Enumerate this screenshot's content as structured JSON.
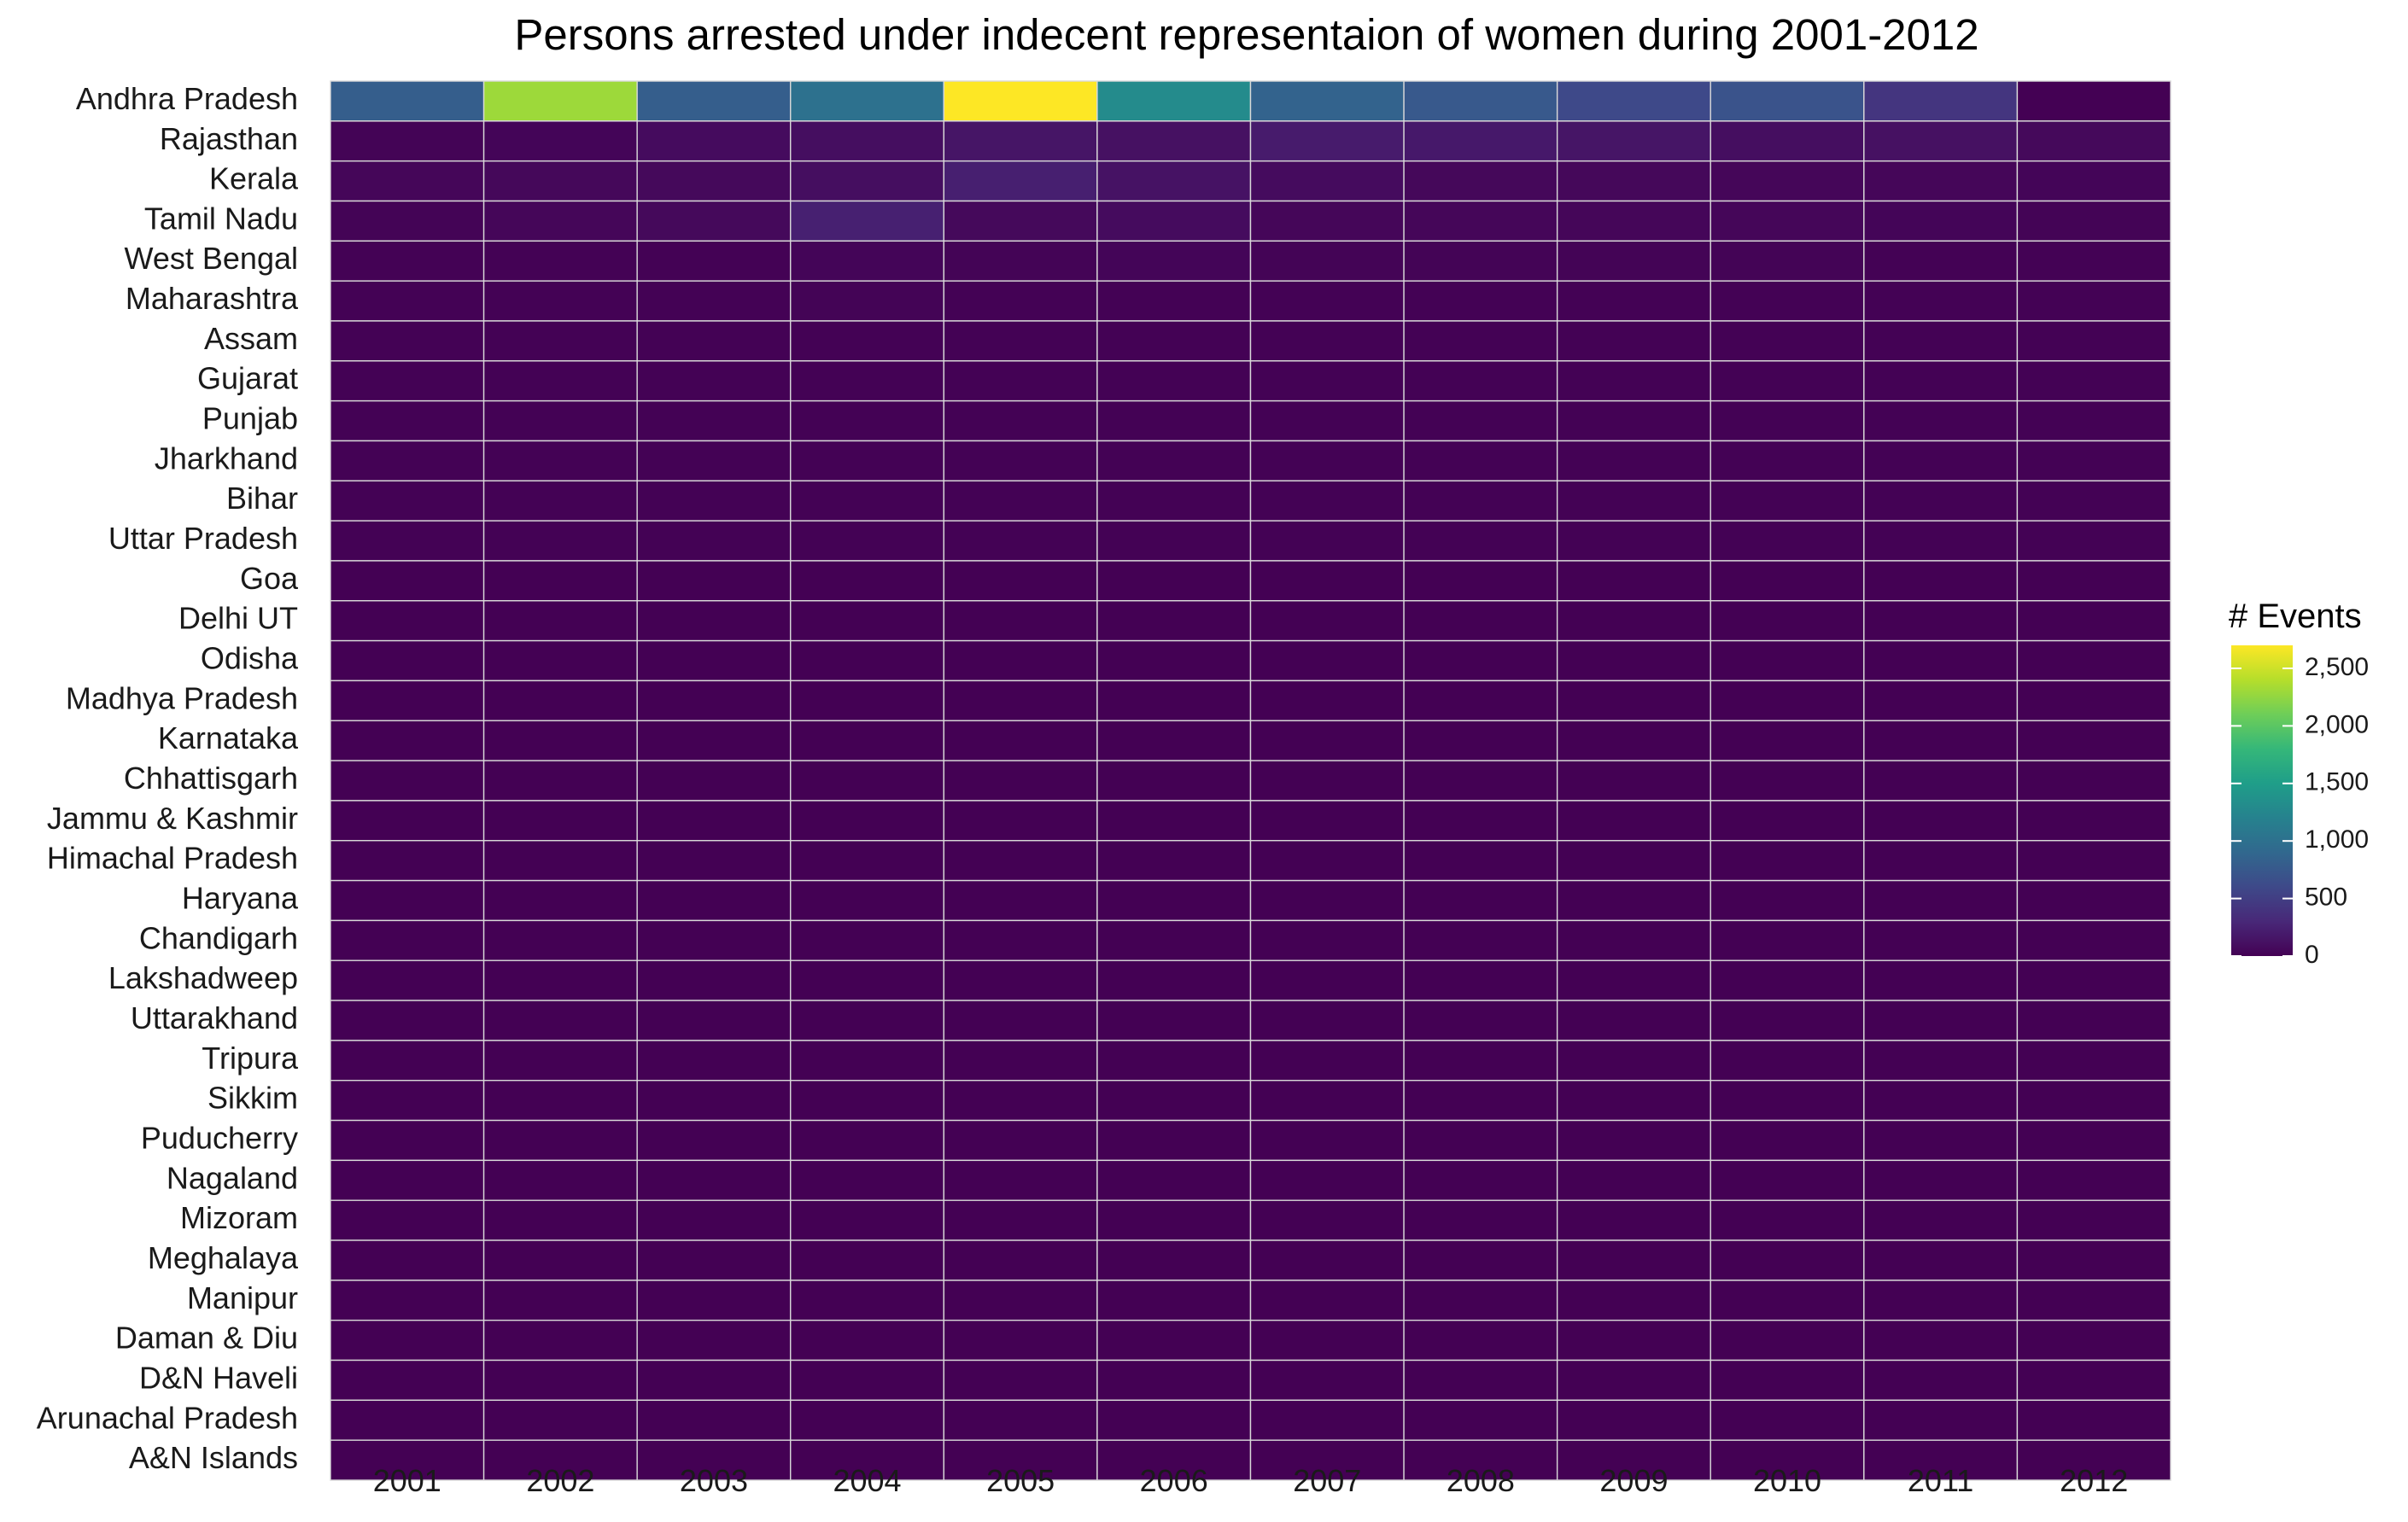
{
  "chart_data": {
    "type": "heatmap",
    "title": "Persons arrested under indecent representaion of women during 2001-2012",
    "xlabel": "",
    "ylabel": "",
    "x_categories": [
      "2001",
      "2002",
      "2003",
      "2004",
      "2005",
      "2006",
      "2007",
      "2008",
      "2009",
      "2010",
      "2011",
      "2012"
    ],
    "y_categories": [
      "Andhra Pradesh",
      "Rajasthan",
      "Kerala",
      "Tamil Nadu",
      "West Bengal",
      "Maharashtra",
      "Assam",
      "Gujarat",
      "Punjab",
      "Jharkhand",
      "Bihar",
      "Uttar Pradesh",
      "Goa",
      "Delhi UT",
      "Odisha",
      "Madhya Pradesh",
      "Karnataka",
      "Chhattisgarh",
      "Jammu & Kashmir",
      "Himachal Pradesh",
      "Haryana",
      "Chandigarh",
      "Lakshadweep",
      "Uttarakhand",
      "Tripura",
      "Sikkim",
      "Puducherry",
      "Nagaland",
      "Mizoram",
      "Meghalaya",
      "Manipur",
      "Daman & Diu",
      "D&N Haveli",
      "Arunachal Pradesh",
      "A&N Islands"
    ],
    "values": [
      [
        800,
        2300,
        800,
        1000,
        2700,
        1300,
        850,
        750,
        600,
        700,
        420,
        0
      ],
      [
        20,
        30,
        80,
        100,
        150,
        120,
        200,
        180,
        150,
        100,
        120,
        60
      ],
      [
        40,
        50,
        60,
        100,
        230,
        130,
        80,
        50,
        50,
        40,
        40,
        30
      ],
      [
        20,
        40,
        60,
        240,
        60,
        80,
        40,
        40,
        40,
        40,
        30,
        20
      ],
      [
        10,
        10,
        10,
        30,
        20,
        30,
        20,
        20,
        20,
        20,
        10,
        10
      ],
      [
        10,
        10,
        10,
        20,
        10,
        10,
        10,
        10,
        10,
        10,
        10,
        10
      ],
      [
        5,
        5,
        5,
        5,
        5,
        5,
        5,
        5,
        5,
        5,
        5,
        5
      ],
      [
        5,
        5,
        5,
        5,
        5,
        5,
        5,
        5,
        5,
        5,
        5,
        5
      ],
      [
        5,
        5,
        5,
        5,
        5,
        5,
        5,
        5,
        5,
        5,
        5,
        5
      ],
      [
        5,
        5,
        5,
        5,
        5,
        5,
        5,
        5,
        5,
        5,
        5,
        5
      ],
      [
        5,
        5,
        5,
        5,
        5,
        5,
        5,
        5,
        5,
        5,
        5,
        5
      ],
      [
        5,
        5,
        5,
        5,
        5,
        5,
        5,
        5,
        5,
        5,
        5,
        5
      ],
      [
        0,
        0,
        0,
        0,
        0,
        0,
        0,
        0,
        0,
        0,
        0,
        0
      ],
      [
        0,
        0,
        0,
        0,
        0,
        0,
        0,
        0,
        0,
        0,
        0,
        0
      ],
      [
        0,
        0,
        0,
        0,
        0,
        0,
        0,
        0,
        0,
        0,
        0,
        0
      ],
      [
        0,
        0,
        0,
        0,
        0,
        0,
        0,
        0,
        0,
        0,
        0,
        0
      ],
      [
        0,
        0,
        0,
        0,
        0,
        0,
        0,
        0,
        0,
        0,
        0,
        0
      ],
      [
        0,
        0,
        0,
        0,
        0,
        0,
        0,
        0,
        0,
        0,
        0,
        0
      ],
      [
        0,
        0,
        0,
        0,
        0,
        0,
        0,
        0,
        0,
        0,
        0,
        0
      ],
      [
        0,
        0,
        0,
        0,
        0,
        0,
        0,
        0,
        0,
        0,
        0,
        0
      ],
      [
        0,
        0,
        0,
        0,
        0,
        0,
        0,
        0,
        0,
        0,
        0,
        0
      ],
      [
        0,
        0,
        0,
        0,
        0,
        0,
        0,
        0,
        0,
        0,
        0,
        0
      ],
      [
        0,
        0,
        0,
        0,
        0,
        0,
        0,
        0,
        0,
        0,
        0,
        0
      ],
      [
        0,
        0,
        0,
        0,
        0,
        0,
        0,
        0,
        0,
        0,
        0,
        0
      ],
      [
        0,
        0,
        0,
        0,
        0,
        0,
        0,
        0,
        0,
        0,
        0,
        0
      ],
      [
        0,
        0,
        0,
        0,
        0,
        0,
        0,
        0,
        0,
        0,
        0,
        0
      ],
      [
        0,
        0,
        0,
        0,
        0,
        0,
        0,
        0,
        0,
        0,
        0,
        0
      ],
      [
        0,
        0,
        0,
        0,
        0,
        0,
        0,
        0,
        0,
        0,
        0,
        0
      ],
      [
        0,
        0,
        0,
        0,
        0,
        0,
        0,
        0,
        0,
        0,
        0,
        0
      ],
      [
        0,
        0,
        0,
        0,
        0,
        0,
        0,
        0,
        0,
        0,
        0,
        0
      ],
      [
        0,
        0,
        0,
        0,
        0,
        0,
        0,
        0,
        0,
        0,
        0,
        0
      ],
      [
        0,
        0,
        0,
        0,
        0,
        0,
        0,
        0,
        0,
        0,
        0,
        0
      ],
      [
        0,
        0,
        0,
        0,
        0,
        0,
        0,
        0,
        0,
        0,
        0,
        0
      ],
      [
        0,
        0,
        0,
        0,
        0,
        0,
        0,
        0,
        0,
        0,
        0,
        0
      ],
      [
        0,
        0,
        0,
        0,
        0,
        0,
        0,
        0,
        0,
        0,
        0,
        0
      ]
    ],
    "color_scale": {
      "name": "viridis",
      "min": 0,
      "max": 2700,
      "stops": [
        "#440154",
        "#482878",
        "#3e4989",
        "#31688e",
        "#26828e",
        "#1f9e89",
        "#35b779",
        "#6ece58",
        "#b5de2b",
        "#fde725"
      ]
    },
    "legend": {
      "title": "# Events",
      "position": "right",
      "ticks": [
        0,
        500,
        1000,
        1500,
        2000,
        2500
      ],
      "tick_labels": [
        "0",
        "500",
        "1,000",
        "1,500",
        "2,000",
        "2,500"
      ]
    },
    "grid": true
  },
  "colors": {
    "background": "#ffffff",
    "cell_border": "#d9d9d9",
    "text": "#1a1a1a"
  }
}
